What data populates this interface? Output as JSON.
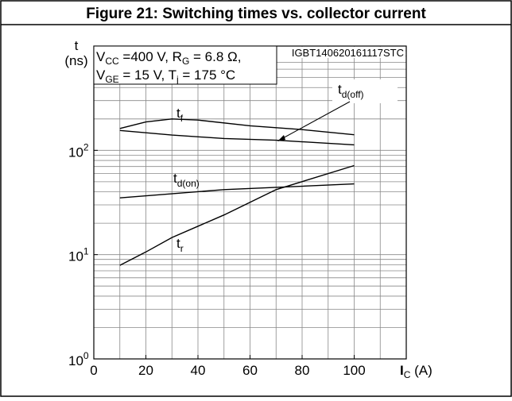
{
  "chart_data": {
    "type": "line",
    "title": "Figure 21: Switching times vs. collector current",
    "y_label": [
      "t",
      "(ns)"
    ],
    "x_label": [
      "I",
      "C",
      " (A)"
    ],
    "code": "IGBT140620161117STC",
    "conditions": [
      [
        "V",
        "CC",
        " =400 V, R",
        "G",
        " = 6.8 Ω,"
      ],
      [
        "V",
        "GE",
        " = 15 V, T",
        "j",
        " = 175 °C"
      ]
    ],
    "log_y": true,
    "xlim": [
      0,
      120
    ],
    "ylim": [
      1,
      1000
    ],
    "xticks": [
      0,
      20,
      40,
      60,
      80,
      100
    ],
    "xgrid": [
      10,
      20,
      30,
      40,
      50,
      60,
      70,
      80,
      90,
      100,
      110
    ],
    "yticks": [
      {
        "value": 1,
        "label": "10",
        "exponent": "0"
      },
      {
        "value": 10,
        "label": "10",
        "exponent": "1"
      },
      {
        "value": 100,
        "label": "10",
        "exponent": "2"
      }
    ],
    "yminor_grid": [
      2,
      3,
      4,
      5,
      6,
      7,
      8,
      9,
      10,
      20,
      30,
      40,
      50,
      60,
      70,
      80,
      90,
      100,
      200,
      300,
      400,
      500,
      600,
      700,
      800,
      900
    ],
    "series": [
      {
        "name": "t",
        "subscript": "f",
        "color": "#000000",
        "x": [
          10,
          20,
          30,
          40,
          60,
          80,
          100
        ],
        "values": [
          162,
          187,
          200,
          195,
          172,
          158,
          141
        ]
      },
      {
        "name": "t",
        "subscript": "d(off)",
        "color": "#000000",
        "x": [
          10,
          30,
          50,
          70,
          100
        ],
        "values": [
          155,
          140,
          130,
          125,
          113
        ]
      },
      {
        "name": "t",
        "subscript": "d(on)",
        "color": "#000000",
        "x": [
          10,
          50,
          100
        ],
        "values": [
          35,
          42,
          47.7
        ]
      },
      {
        "name": "t",
        "subscript": "r",
        "color": "#000000",
        "x": [
          10,
          20,
          30,
          50,
          70,
          100
        ],
        "values": [
          7.9,
          10.6,
          14.6,
          24,
          42,
          71.5
        ]
      }
    ]
  }
}
